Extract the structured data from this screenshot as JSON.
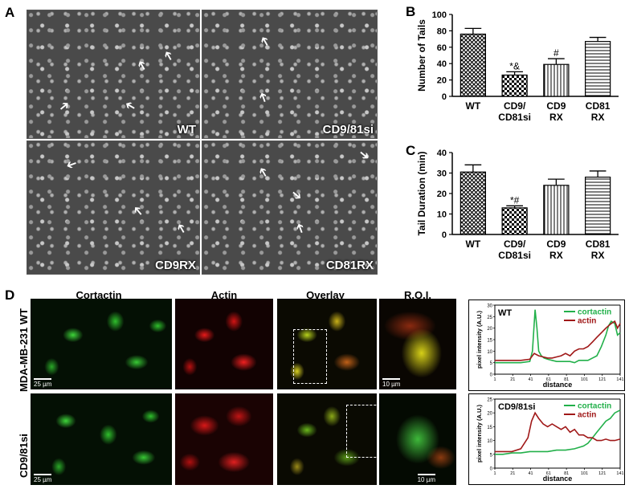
{
  "panels": {
    "A": "A",
    "B": "B",
    "C": "C",
    "D": "D"
  },
  "micrographs": [
    {
      "id": "wt",
      "caption": "WT"
    },
    {
      "id": "cd981si",
      "caption": "CD9/81si"
    },
    {
      "id": "cd9rx",
      "caption": "CD9RX"
    },
    {
      "id": "cd81rx",
      "caption": "CD81RX"
    }
  ],
  "chart_data": [
    {
      "type": "bar",
      "ylabel": "Number of Tails",
      "ylim": [
        0,
        100
      ],
      "yticks": [
        0,
        20,
        40,
        60,
        80,
        100
      ],
      "categories": [
        [
          "WT"
        ],
        [
          "CD9/",
          "CD81si"
        ],
        [
          "CD9",
          "RX"
        ],
        [
          "CD81",
          "RX"
        ]
      ],
      "values": [
        76,
        26,
        39,
        67
      ],
      "errors": [
        7,
        4,
        7,
        5
      ],
      "annotations": [
        "",
        "*&",
        "#",
        ""
      ],
      "patterns": [
        "cross",
        "checker",
        "vline",
        "hline"
      ]
    },
    {
      "type": "bar",
      "ylabel": "Tail Duration (min)",
      "ylim": [
        0,
        40
      ],
      "yticks": [
        0,
        10,
        20,
        30,
        40
      ],
      "categories": [
        [
          "WT"
        ],
        [
          "CD9/",
          "CD81si"
        ],
        [
          "CD9",
          "RX"
        ],
        [
          "CD81",
          "RX"
        ]
      ],
      "values": [
        30.5,
        13,
        24,
        28
      ],
      "errors": [
        3.5,
        1,
        3,
        3
      ],
      "annotations": [
        "",
        "*#",
        "",
        ""
      ],
      "patterns": [
        "cross",
        "checker",
        "vline",
        "hline"
      ]
    },
    {
      "type": "line",
      "title": "WT",
      "xlabel": "distance",
      "ylabel": "pixel intensity (A.U.)",
      "ylim": [
        0,
        30
      ],
      "yticks": [
        0,
        5,
        10,
        15,
        20,
        25,
        30
      ],
      "xticks": [
        1,
        21,
        41,
        61,
        81,
        101,
        121,
        141
      ],
      "series": [
        {
          "name": "cortactin",
          "color": "#22b04a",
          "x": [
            1,
            10,
            20,
            30,
            40,
            43,
            46,
            48,
            50,
            53,
            56,
            60,
            65,
            70,
            75,
            80,
            85,
            90,
            95,
            100,
            105,
            110,
            115,
            120,
            125,
            128,
            131,
            135,
            138,
            141
          ],
          "y": [
            5,
            5,
            5,
            5,
            5.5,
            10,
            28,
            20,
            10,
            8,
            7,
            6.5,
            6,
            5.5,
            5.5,
            5.5,
            5.5,
            5,
            6,
            6,
            6,
            7,
            8,
            12,
            17,
            21,
            23,
            22,
            17,
            18
          ]
        },
        {
          "name": "actin",
          "color": "#a01818",
          "x": [
            1,
            10,
            20,
            30,
            40,
            45,
            50,
            55,
            60,
            65,
            70,
            75,
            80,
            85,
            90,
            95,
            100,
            105,
            110,
            115,
            120,
            125,
            128,
            131,
            135,
            138,
            141
          ],
          "y": [
            6,
            6,
            6,
            6,
            6.5,
            9,
            8,
            7.5,
            7,
            7,
            7.5,
            8,
            9,
            8,
            10,
            11,
            11,
            12,
            14,
            16,
            18,
            20,
            21,
            22,
            23,
            20,
            22
          ]
        }
      ]
    },
    {
      "type": "line",
      "title": "CD9/81si",
      "xlabel": "distance",
      "ylabel": "pixel intensity (A.U.)",
      "ylim": [
        0,
        25
      ],
      "yticks": [
        0,
        5,
        10,
        15,
        20,
        25
      ],
      "xticks": [
        1,
        21,
        41,
        61,
        81,
        101,
        121,
        141
      ],
      "series": [
        {
          "name": "cortactin",
          "color": "#22b04a",
          "x": [
            1,
            10,
            20,
            30,
            40,
            50,
            60,
            70,
            80,
            90,
            100,
            105,
            110,
            115,
            120,
            125,
            130,
            135,
            141
          ],
          "y": [
            5,
            5,
            5.5,
            5.5,
            6,
            6,
            6,
            6.5,
            6.5,
            7,
            8,
            9,
            11,
            13,
            15,
            17,
            18,
            20,
            21
          ]
        },
        {
          "name": "actin",
          "color": "#a01818",
          "x": [
            1,
            10,
            20,
            30,
            38,
            42,
            46,
            50,
            55,
            60,
            65,
            70,
            75,
            80,
            85,
            90,
            95,
            100,
            105,
            110,
            115,
            120,
            125,
            130,
            135,
            141
          ],
          "y": [
            6,
            6,
            6,
            7,
            11,
            17,
            20,
            18,
            16,
            15,
            16,
            15,
            14,
            15,
            13,
            14,
            12,
            12,
            11,
            11,
            10,
            10,
            10.5,
            10,
            10,
            10.5
          ]
        }
      ]
    }
  ],
  "panelD": {
    "columns": [
      "Cortactin",
      "Actin",
      "Overlay",
      "R.O.I."
    ],
    "rows": [
      "MDA-MB-231 WT",
      "CD9/81si"
    ],
    "scale_main": "25 µm",
    "scale_roi": "10 µm"
  }
}
